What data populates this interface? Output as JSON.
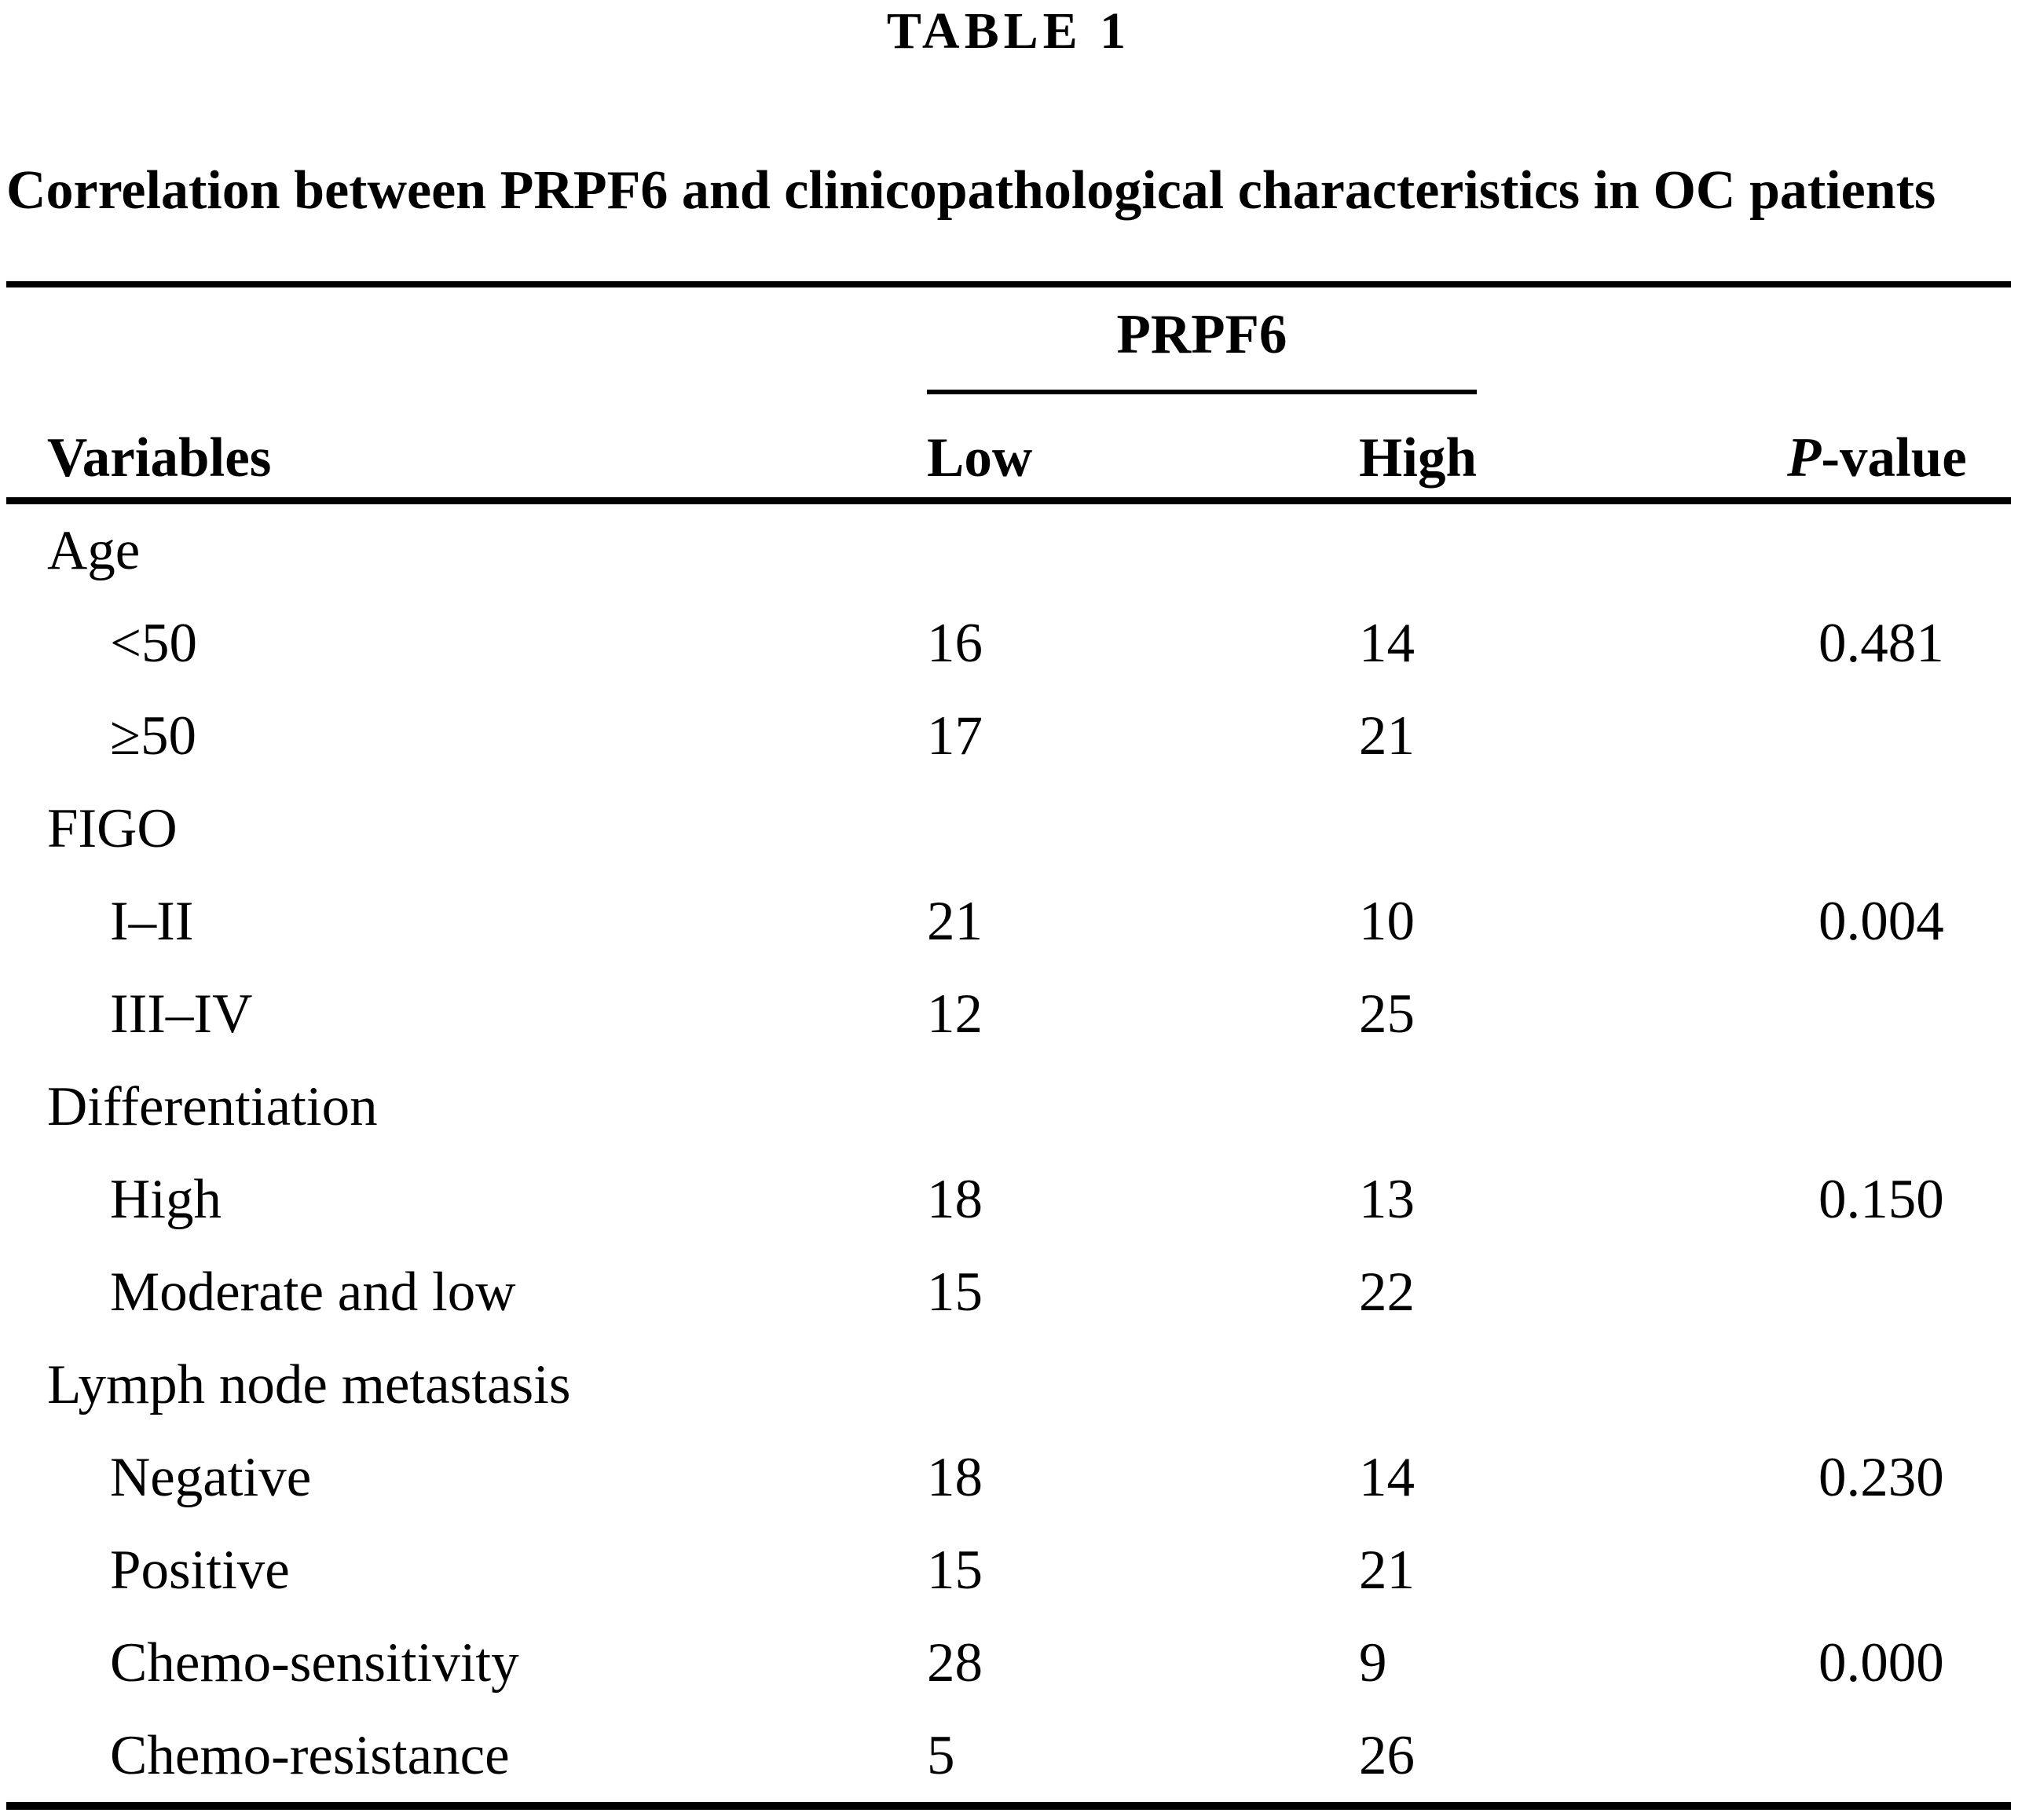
{
  "title": "TABLE 1",
  "caption": "Correlation between PRPF6 and clinicopathological characteristics in OC patients",
  "table": {
    "span_header": "PRPF6",
    "columns": [
      "Variables",
      "Low",
      "High",
      "P-value"
    ],
    "p_header_italic": "P",
    "p_header_rest": "-value",
    "rows": [
      {
        "label": "Age",
        "indent": false,
        "low": "",
        "high": "",
        "p": ""
      },
      {
        "label": "<50",
        "indent": true,
        "low": "16",
        "high": "14",
        "p": "0.481"
      },
      {
        "label": "≥50",
        "indent": true,
        "low": "17",
        "high": "21",
        "p": ""
      },
      {
        "label": "FIGO",
        "indent": false,
        "low": "",
        "high": "",
        "p": ""
      },
      {
        "label": "I–II",
        "indent": true,
        "low": "21",
        "high": "10",
        "p": "0.004"
      },
      {
        "label": "III–IV",
        "indent": true,
        "low": "12",
        "high": "25",
        "p": ""
      },
      {
        "label": "Differentiation",
        "indent": false,
        "low": "",
        "high": "",
        "p": ""
      },
      {
        "label": "High",
        "indent": true,
        "low": "18",
        "high": "13",
        "p": "0.150"
      },
      {
        "label": "Moderate and low",
        "indent": true,
        "low": "15",
        "high": "22",
        "p": ""
      },
      {
        "label": "Lymph node metastasis",
        "indent": false,
        "low": "",
        "high": "",
        "p": ""
      },
      {
        "label": "Negative",
        "indent": true,
        "low": "18",
        "high": "14",
        "p": "0.230"
      },
      {
        "label": "Positive",
        "indent": true,
        "low": "15",
        "high": "21",
        "p": ""
      },
      {
        "label": "Chemo-sensitivity",
        "indent": true,
        "low": "28",
        "high": "9",
        "p": "0.000"
      },
      {
        "label": "Chemo-resistance",
        "indent": true,
        "low": "5",
        "high": "26",
        "p": ""
      }
    ]
  }
}
